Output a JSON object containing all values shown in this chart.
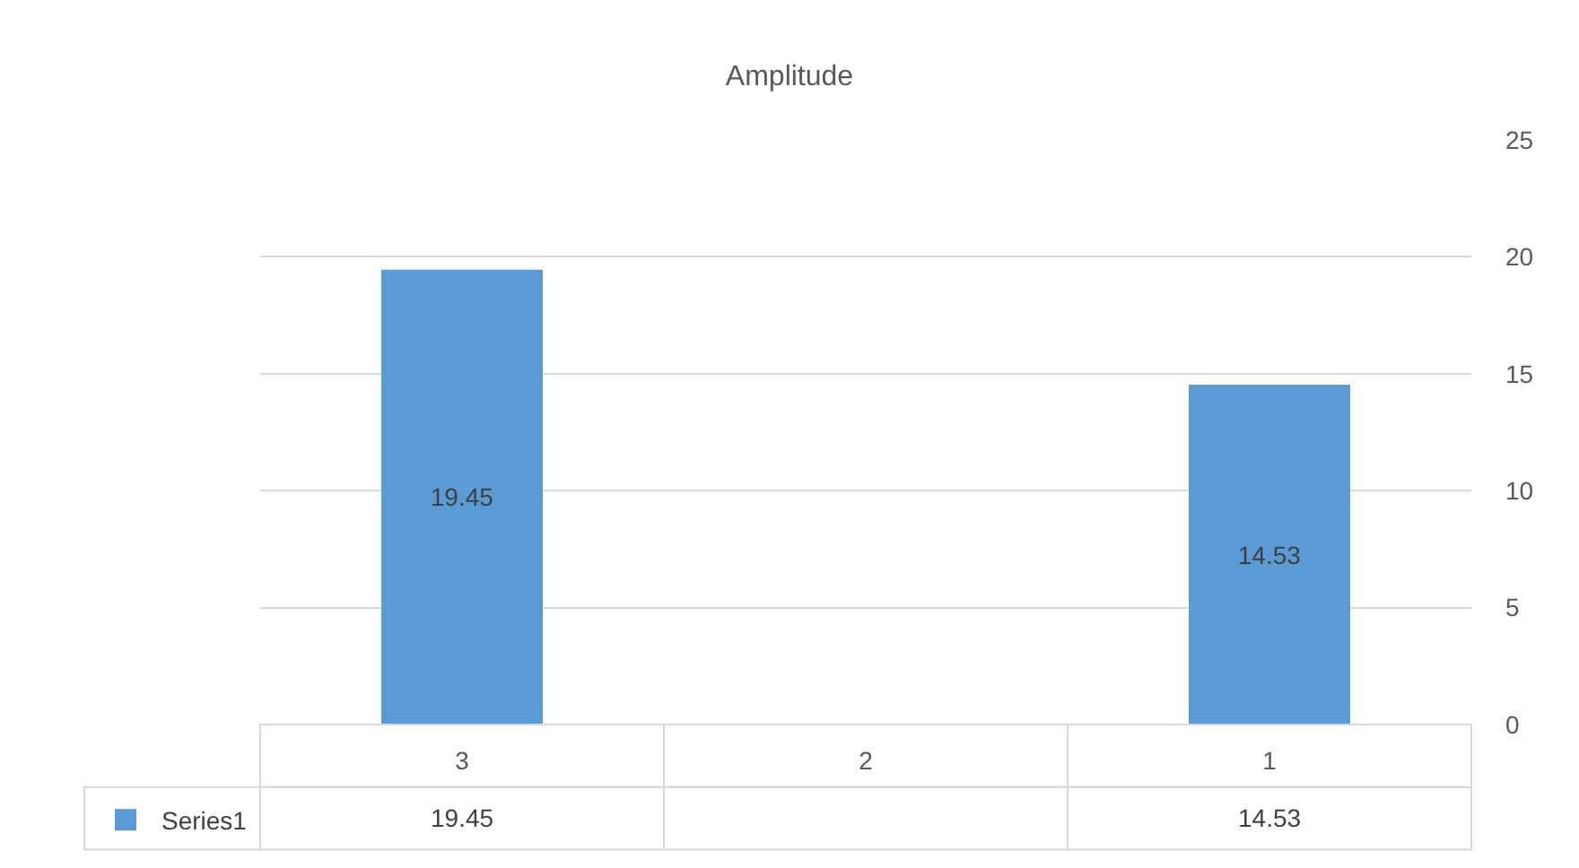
{
  "chart_data": {
    "type": "bar",
    "title": "Amplitude",
    "categories": [
      "3",
      "2",
      "1"
    ],
    "series": [
      {
        "name": "Series1",
        "color": "#5b9bd5",
        "values": [
          19.45,
          null,
          14.53
        ],
        "value_labels": [
          "19.45",
          null,
          "14.53"
        ]
      }
    ],
    "annotations": [
      "19.45",
      "14.53"
    ],
    "ylim": [
      0,
      25
    ],
    "yticks": [
      0,
      5,
      10,
      15,
      20,
      25
    ],
    "grid": "y",
    "data_labels": true,
    "legend": "bottom left"
  }
}
